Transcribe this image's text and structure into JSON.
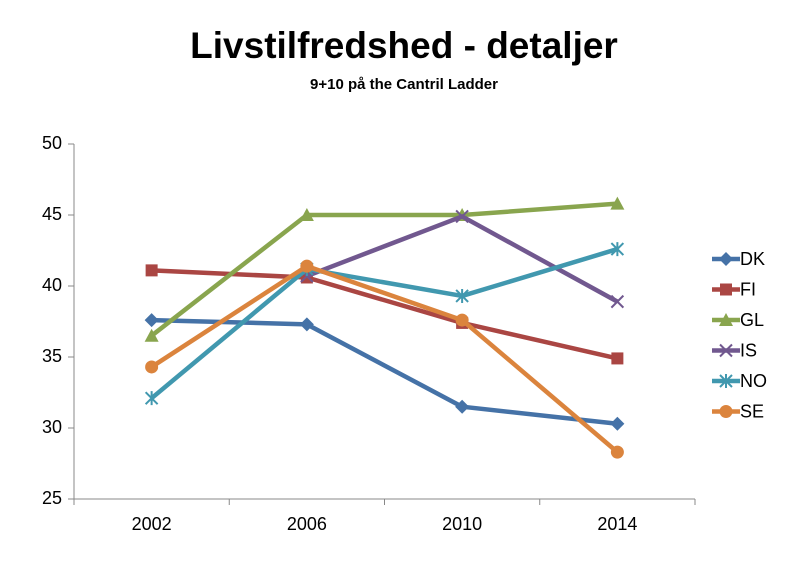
{
  "chart_data": {
    "type": "line",
    "title": "Livstilfredshed - detaljer",
    "subtitle": "9+10 på the Cantril Ladder",
    "categories": [
      "2002",
      "2006",
      "2010",
      "2014"
    ],
    "series": [
      {
        "name": "DK",
        "color": "#4572a7",
        "marker": "diamond",
        "values": [
          37.6,
          37.3,
          31.5,
          30.3
        ]
      },
      {
        "name": "FI",
        "color": "#aa4643",
        "marker": "square",
        "values": [
          41.1,
          40.6,
          37.4,
          34.9
        ]
      },
      {
        "name": "GL",
        "color": "#89a54e",
        "marker": "triangle",
        "values": [
          36.5,
          45.0,
          45.0,
          45.8
        ]
      },
      {
        "name": "IS",
        "color": "#71588f",
        "marker": "x",
        "values": [
          null,
          40.7,
          44.9,
          38.9
        ]
      },
      {
        "name": "NO",
        "color": "#4198af",
        "marker": "star",
        "values": [
          32.1,
          41.2,
          39.3,
          42.6
        ]
      },
      {
        "name": "SE",
        "color": "#db843d",
        "marker": "circle",
        "values": [
          34.3,
          41.4,
          37.6,
          28.3
        ]
      }
    ],
    "ylim": [
      25,
      50
    ],
    "yticks": [
      25,
      30,
      35,
      40,
      45,
      50
    ],
    "grid": false,
    "legend": "right"
  }
}
